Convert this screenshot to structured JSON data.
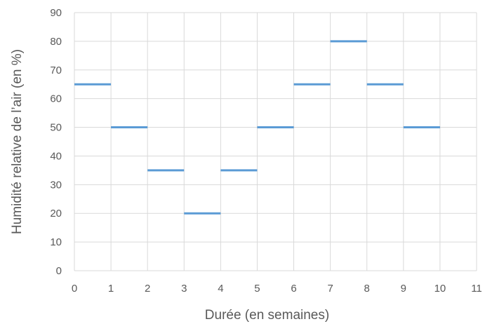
{
  "chart_data": {
    "type": "line",
    "title": "",
    "xlabel": "Durée (en semaines)",
    "ylabel": "Humidité relative de l’air (en %)",
    "xlim": [
      0,
      11
    ],
    "ylim": [
      0,
      90
    ],
    "xticks": [
      "0",
      "1",
      "2",
      "3",
      "4",
      "5",
      "6",
      "7",
      "8",
      "9",
      "10",
      "11"
    ],
    "yticks": [
      "0",
      "10",
      "20",
      "30",
      "40",
      "50",
      "60",
      "70",
      "80",
      "90"
    ],
    "grid": true,
    "legend": "none",
    "color": "#5b9bd5",
    "series": [
      {
        "segments": [
          {
            "x0": 0,
            "x1": 1,
            "y": 65
          },
          {
            "x0": 1,
            "x1": 2,
            "y": 50
          },
          {
            "x0": 2,
            "x1": 3,
            "y": 35
          },
          {
            "x0": 3,
            "x1": 4,
            "y": 20
          },
          {
            "x0": 4,
            "x1": 5,
            "y": 35
          },
          {
            "x0": 5,
            "x1": 6,
            "y": 50
          },
          {
            "x0": 6,
            "x1": 7,
            "y": 65
          },
          {
            "x0": 7,
            "x1": 8,
            "y": 80
          },
          {
            "x0": 8,
            "x1": 9,
            "y": 65
          },
          {
            "x0": 9,
            "x1": 10,
            "y": 50
          }
        ]
      }
    ]
  }
}
